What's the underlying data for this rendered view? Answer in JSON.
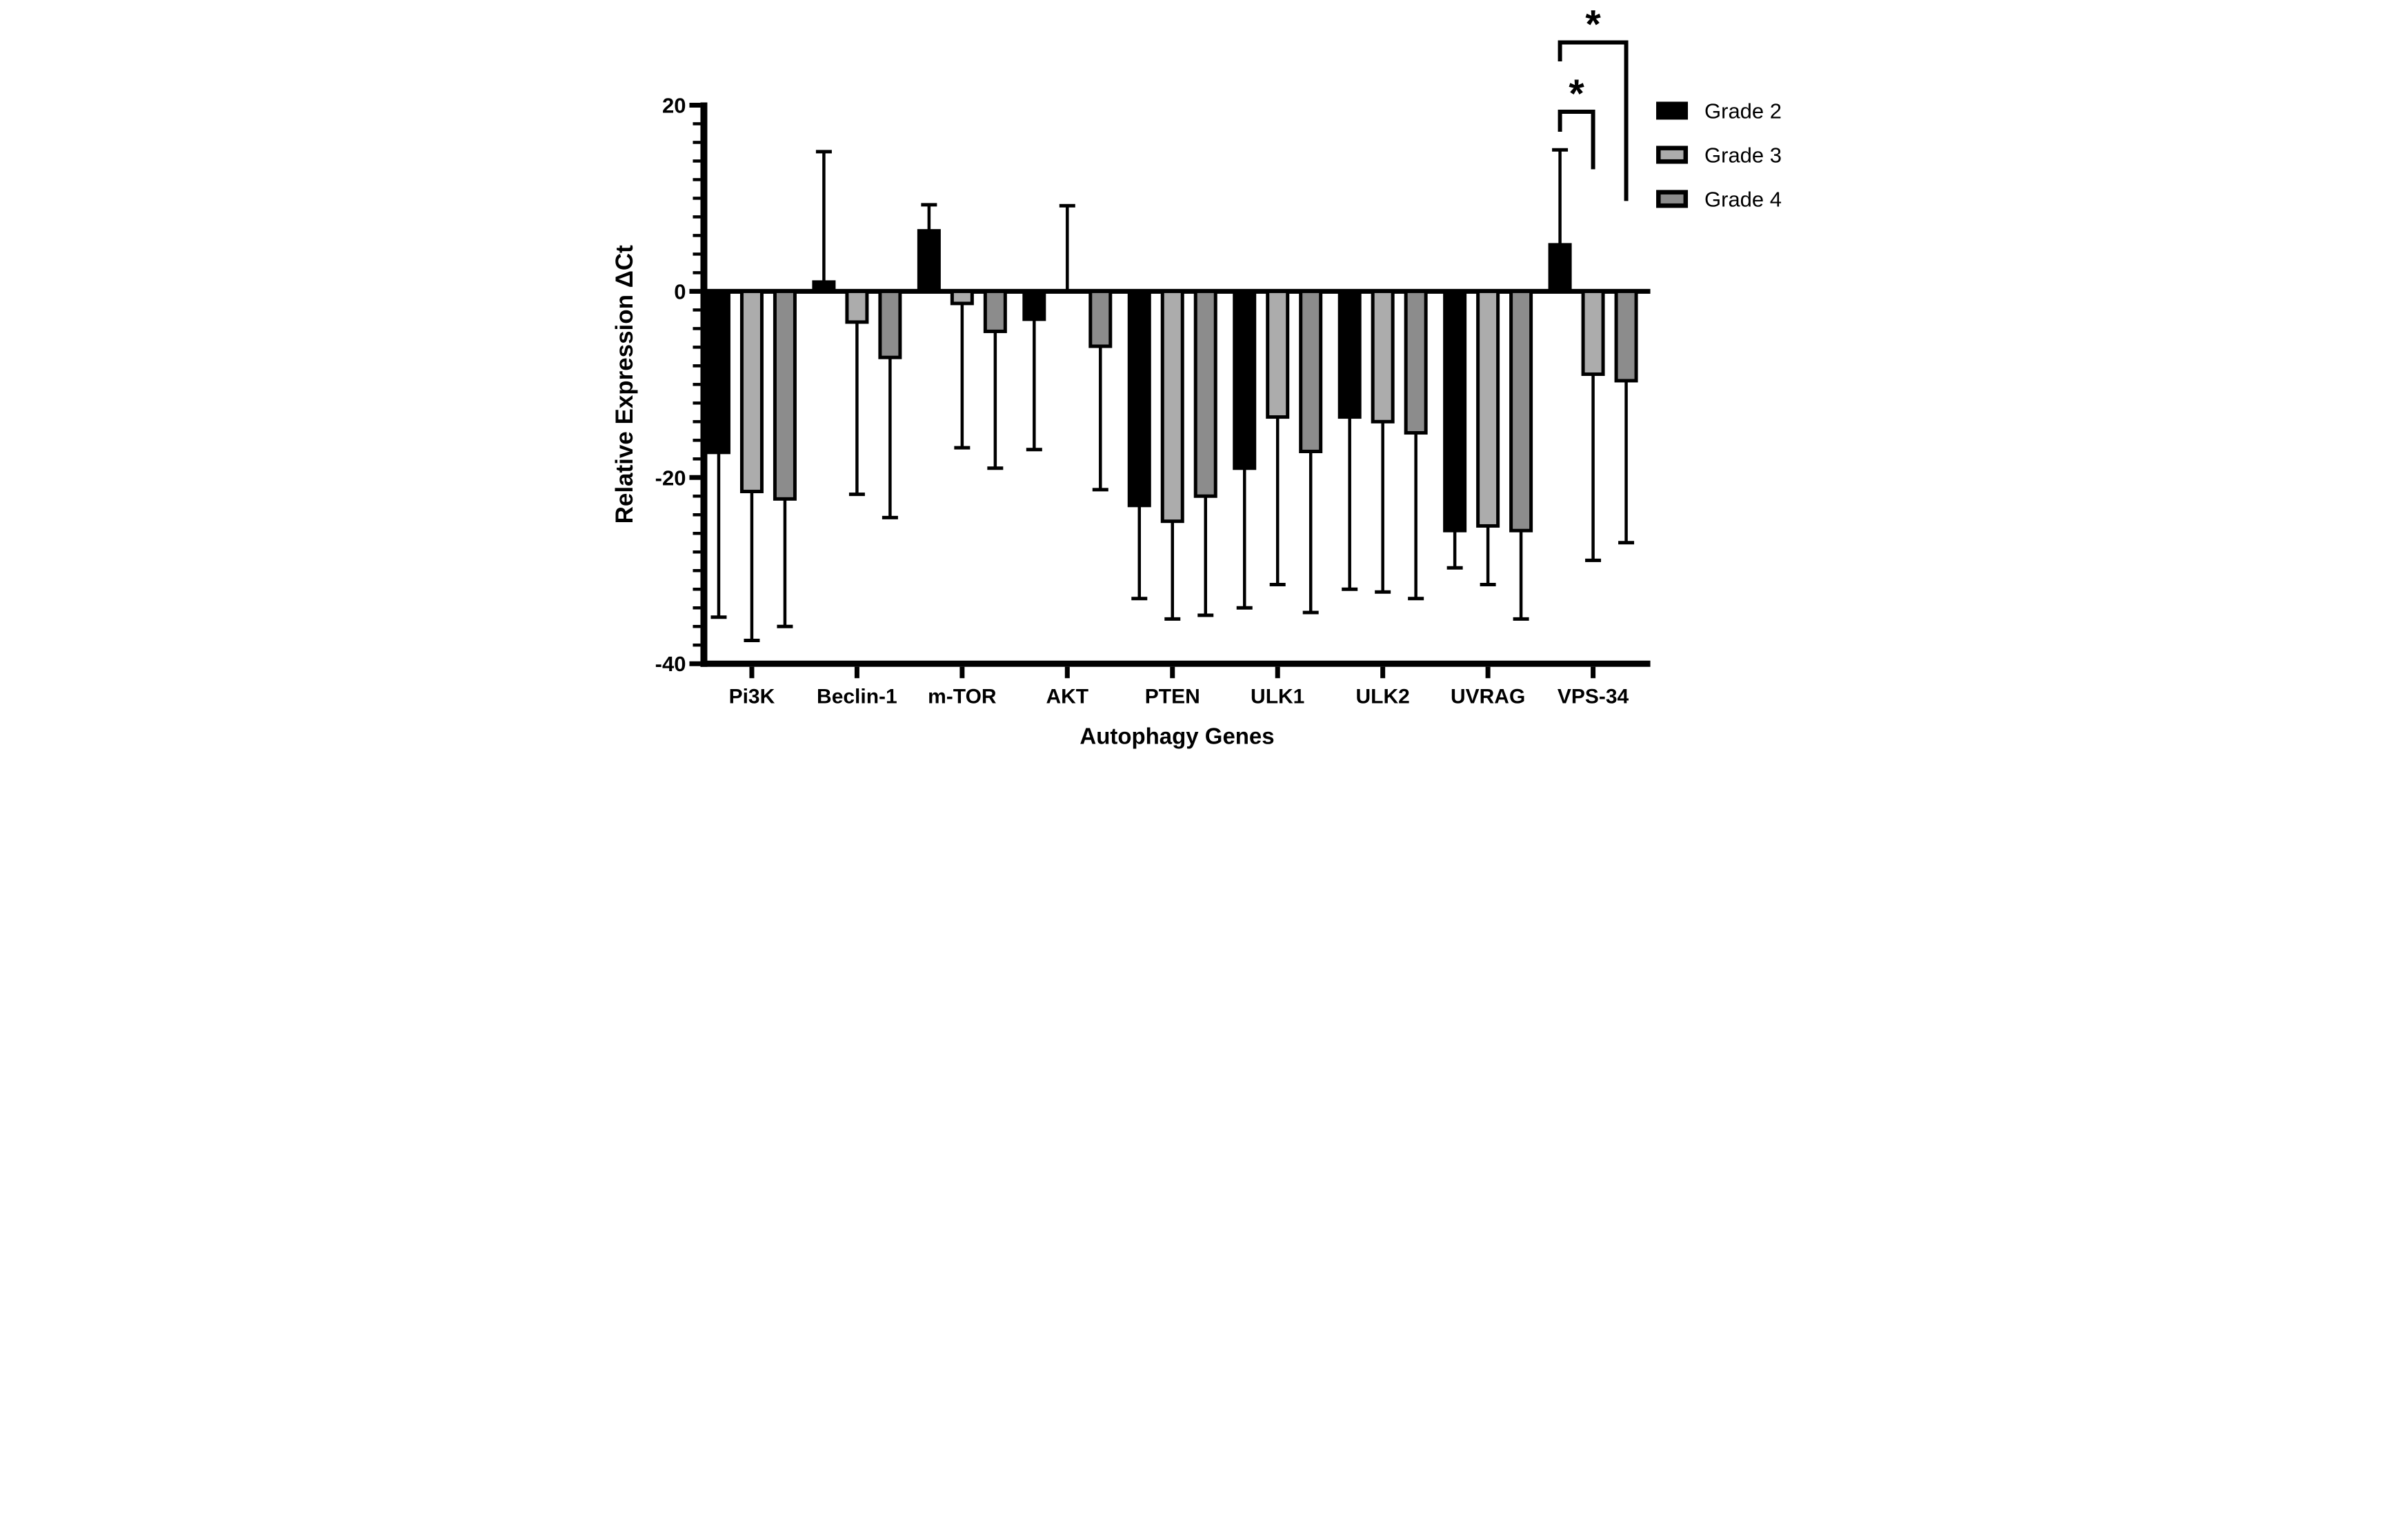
{
  "figure": {
    "background": "#FFFFFF",
    "ink_color": "#000000"
  },
  "chart_data": {
    "type": "bar",
    "title": "",
    "xlabel": "Autophagy Genes",
    "ylabel": "Relative Expression ΔCt",
    "ylim": [
      -40,
      20
    ],
    "yticks_major": [
      20,
      0,
      -20,
      -40
    ],
    "ytick_minor_step": 2,
    "grid": false,
    "legend_position": "right-top",
    "categories": [
      "Pi3K",
      "Beclin-1",
      "m-TOR",
      "AKT",
      "PTEN",
      "ULK1",
      "ULK2",
      "UVRAG",
      "VPS-34"
    ],
    "series": [
      {
        "name": "Grade 2",
        "color": "#000000",
        "values": [
          -17.3,
          1.0,
          6.5,
          -3.0,
          -23.0,
          -19.0,
          -13.5,
          -25.7,
          5.0
        ],
        "whisker_ends": [
          -35.0,
          15.0,
          9.3,
          -17.0,
          -33.0,
          -34.0,
          -32.0,
          -29.7,
          15.2
        ]
      },
      {
        "name": "Grade 3",
        "color": "#ACACAC",
        "values": [
          -21.5,
          -3.3,
          -1.3,
          0.0,
          -24.7,
          -13.5,
          -14.0,
          -25.2,
          -8.9
        ],
        "whisker_ends": [
          -37.5,
          -21.8,
          -16.8,
          9.2,
          -35.2,
          -31.5,
          -32.3,
          -31.5,
          -28.9
        ]
      },
      {
        "name": "Grade 4",
        "color": "#8C8C8C",
        "values": [
          -22.3,
          -7.1,
          -4.3,
          -5.9,
          -22.0,
          -17.2,
          -15.2,
          -25.7,
          -9.6
        ],
        "whisker_ends": [
          -36.0,
          -24.3,
          -19.0,
          -21.3,
          -34.8,
          -34.5,
          -33.0,
          -35.2,
          -27.0
        ]
      }
    ],
    "annotations": {
      "significance_brackets": [
        {
          "label": "*",
          "category": "VPS-34",
          "between": [
            "Grade 2",
            "Grade 3"
          ]
        },
        {
          "label": "*",
          "category": "VPS-34",
          "between": [
            "Grade 2",
            "Grade 4"
          ]
        }
      ]
    }
  }
}
